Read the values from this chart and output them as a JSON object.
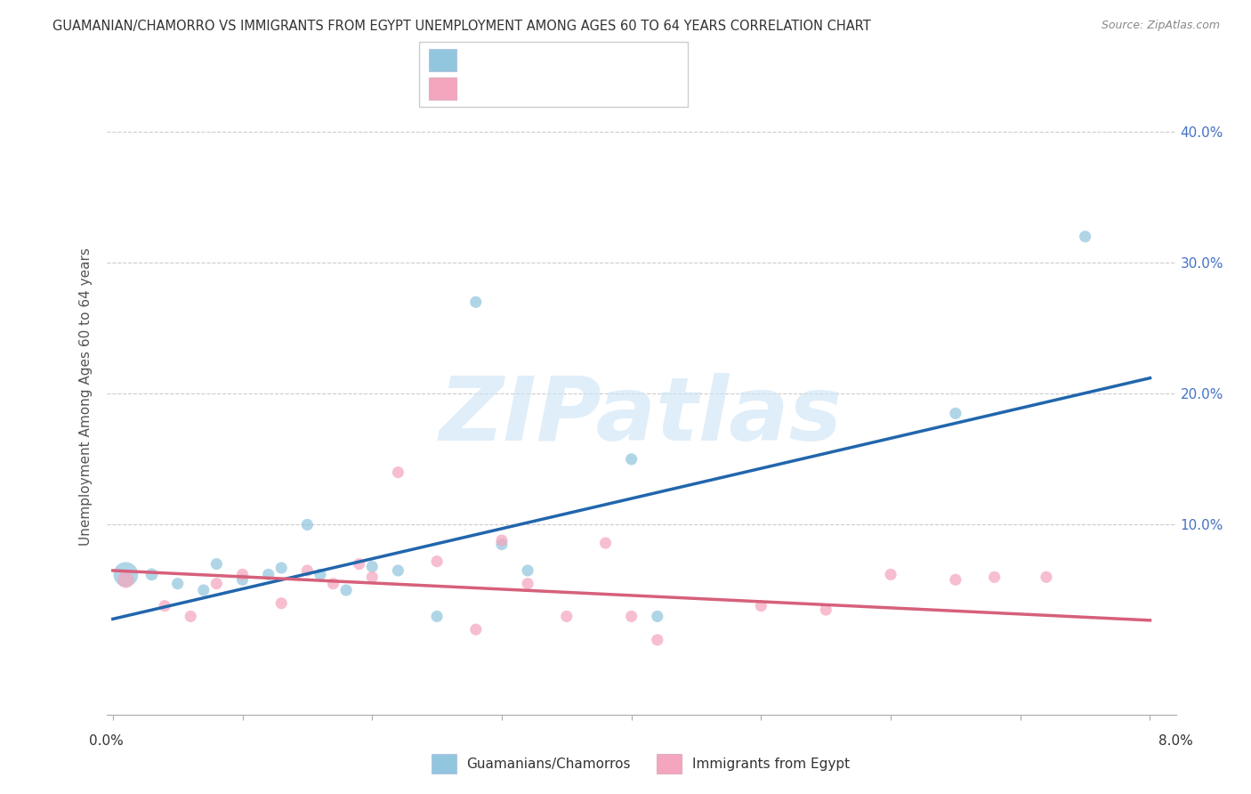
{
  "title": "GUAMANIAN/CHAMORRO VS IMMIGRANTS FROM EGYPT UNEMPLOYMENT AMONG AGES 60 TO 64 YEARS CORRELATION CHART",
  "source": "Source: ZipAtlas.com",
  "ylabel": "Unemployment Among Ages 60 to 64 years",
  "y_tick_vals": [
    0.0,
    0.1,
    0.2,
    0.3,
    0.4
  ],
  "y_tick_labels": [
    "",
    "10.0%",
    "20.0%",
    "30.0%",
    "40.0%"
  ],
  "xlim": [
    -0.0005,
    0.082
  ],
  "ylim": [
    -0.045,
    0.44
  ],
  "blue_scatter_color": "#92c5de",
  "pink_scatter_color": "#f4a6be",
  "blue_line_color": "#2166ac",
  "pink_line_color": "#d6607a",
  "legend_text_blue": "#4472c4",
  "legend_text_pink": "#d06080",
  "watermark": "ZIPatlas",
  "guam_x": [
    0.001,
    0.003,
    0.005,
    0.007,
    0.008,
    0.01,
    0.012,
    0.013,
    0.015,
    0.016,
    0.018,
    0.02,
    0.022,
    0.025,
    0.028,
    0.03,
    0.032,
    0.04,
    0.042,
    0.065,
    0.075
  ],
  "guam_y": [
    0.062,
    0.062,
    0.055,
    0.05,
    0.07,
    0.058,
    0.062,
    0.067,
    0.1,
    0.062,
    0.05,
    0.068,
    0.065,
    0.03,
    0.27,
    0.085,
    0.065,
    0.15,
    0.03,
    0.185,
    0.32
  ],
  "guam_s": [
    400,
    100,
    90,
    90,
    90,
    90,
    90,
    90,
    90,
    90,
    90,
    90,
    90,
    90,
    90,
    90,
    90,
    90,
    90,
    90,
    90
  ],
  "egypt_x": [
    0.001,
    0.004,
    0.006,
    0.008,
    0.01,
    0.013,
    0.015,
    0.017,
    0.019,
    0.02,
    0.022,
    0.025,
    0.028,
    0.03,
    0.032,
    0.035,
    0.038,
    0.04,
    0.042,
    0.05,
    0.055,
    0.06,
    0.065,
    0.068,
    0.072
  ],
  "egypt_y": [
    0.058,
    0.038,
    0.03,
    0.055,
    0.062,
    0.04,
    0.065,
    0.055,
    0.07,
    0.06,
    0.14,
    0.072,
    0.02,
    0.088,
    0.055,
    0.03,
    0.086,
    0.03,
    0.012,
    0.038,
    0.035,
    0.062,
    0.058,
    0.06,
    0.06
  ],
  "egypt_s": [
    180,
    90,
    90,
    90,
    90,
    90,
    90,
    90,
    90,
    90,
    90,
    90,
    90,
    90,
    90,
    90,
    90,
    90,
    90,
    90,
    90,
    90,
    90,
    90,
    90
  ],
  "blue_line_x": [
    0.0,
    0.08
  ],
  "blue_line_y": [
    0.028,
    0.212
  ],
  "pink_line_x": [
    0.0,
    0.08
  ],
  "pink_line_y": [
    0.065,
    0.027
  ],
  "grid_color": "#cccccc",
  "background_color": "#ffffff",
  "title_color": "#333333",
  "source_color": "#888888",
  "axis_label_color": "#555555",
  "tick_right_color": "#4472c4"
}
